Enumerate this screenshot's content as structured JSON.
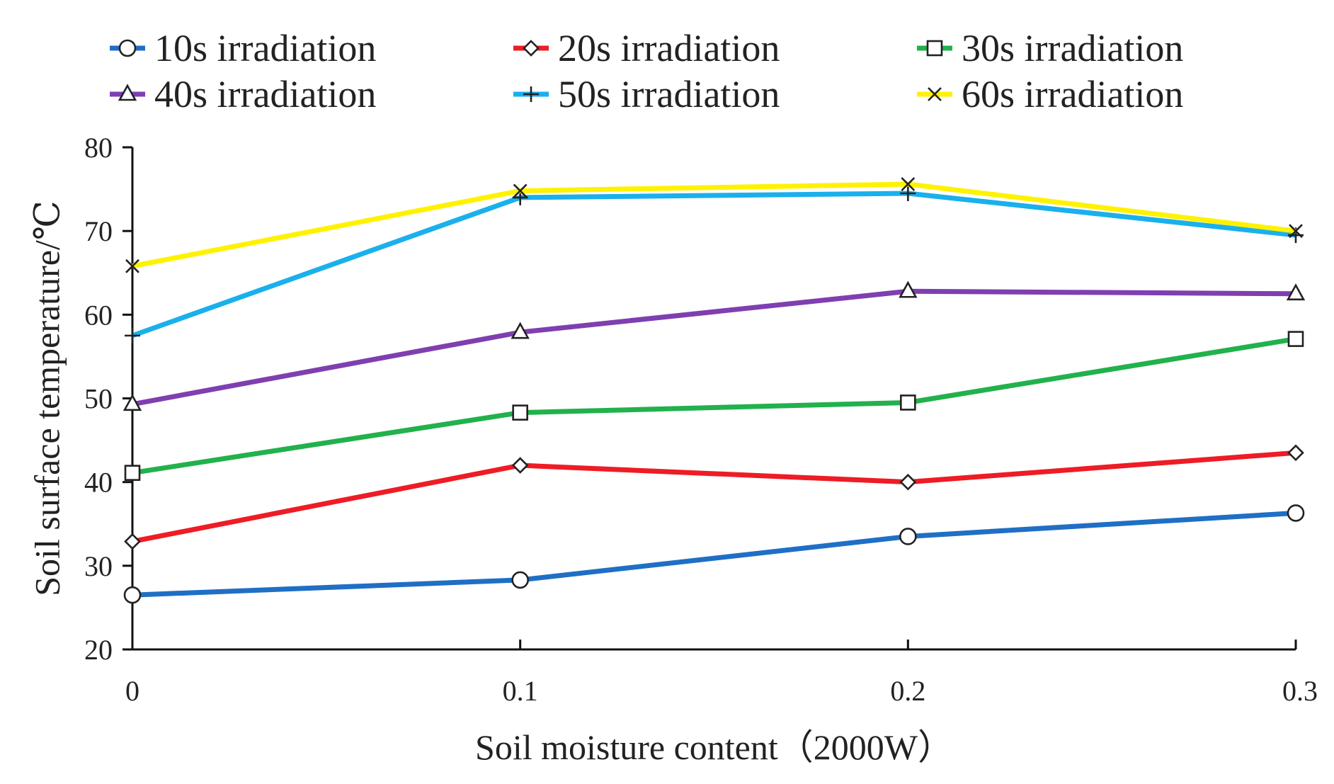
{
  "chart_data": {
    "type": "line",
    "title": "",
    "xlabel": "Soil moisture content（2000W）",
    "ylabel": "Soil surface temperature/℃",
    "x": [
      0,
      0.1,
      0.2,
      0.3
    ],
    "x_tick_labels": [
      "0",
      "0.1",
      "0.2",
      "0.3"
    ],
    "xlim": [
      0,
      0.3
    ],
    "ylim": [
      20,
      80
    ],
    "y_ticks": [
      20,
      30,
      40,
      50,
      60,
      70,
      80
    ],
    "y_tick_labels": [
      "20",
      "30",
      "40",
      "50",
      "60",
      "70",
      "80"
    ],
    "grid": false,
    "legend_position": "top",
    "series": [
      {
        "name": "10s irradiation",
        "color": "#1f6fc5",
        "marker": "circle",
        "values": [
          26.5,
          28.3,
          33.5,
          36.3
        ]
      },
      {
        "name": "20s irradiation",
        "color": "#ee1c25",
        "marker": "diamond",
        "values": [
          32.9,
          42.0,
          40.0,
          43.5
        ]
      },
      {
        "name": "30s irradiation",
        "color": "#22b14c",
        "marker": "square",
        "values": [
          41.1,
          48.3,
          49.5,
          57.1
        ]
      },
      {
        "name": "40s irradiation",
        "color": "#7f3fb0",
        "marker": "triangle",
        "values": [
          49.3,
          57.9,
          62.8,
          62.5
        ]
      },
      {
        "name": "50s irradiation",
        "color": "#1ab0ec",
        "marker": "plus",
        "values": [
          57.5,
          74.0,
          74.5,
          69.5
        ]
      },
      {
        "name": "60s irradiation",
        "color": "#fff200",
        "marker": "x",
        "values": [
          65.8,
          74.8,
          75.6,
          70.0
        ]
      }
    ]
  }
}
